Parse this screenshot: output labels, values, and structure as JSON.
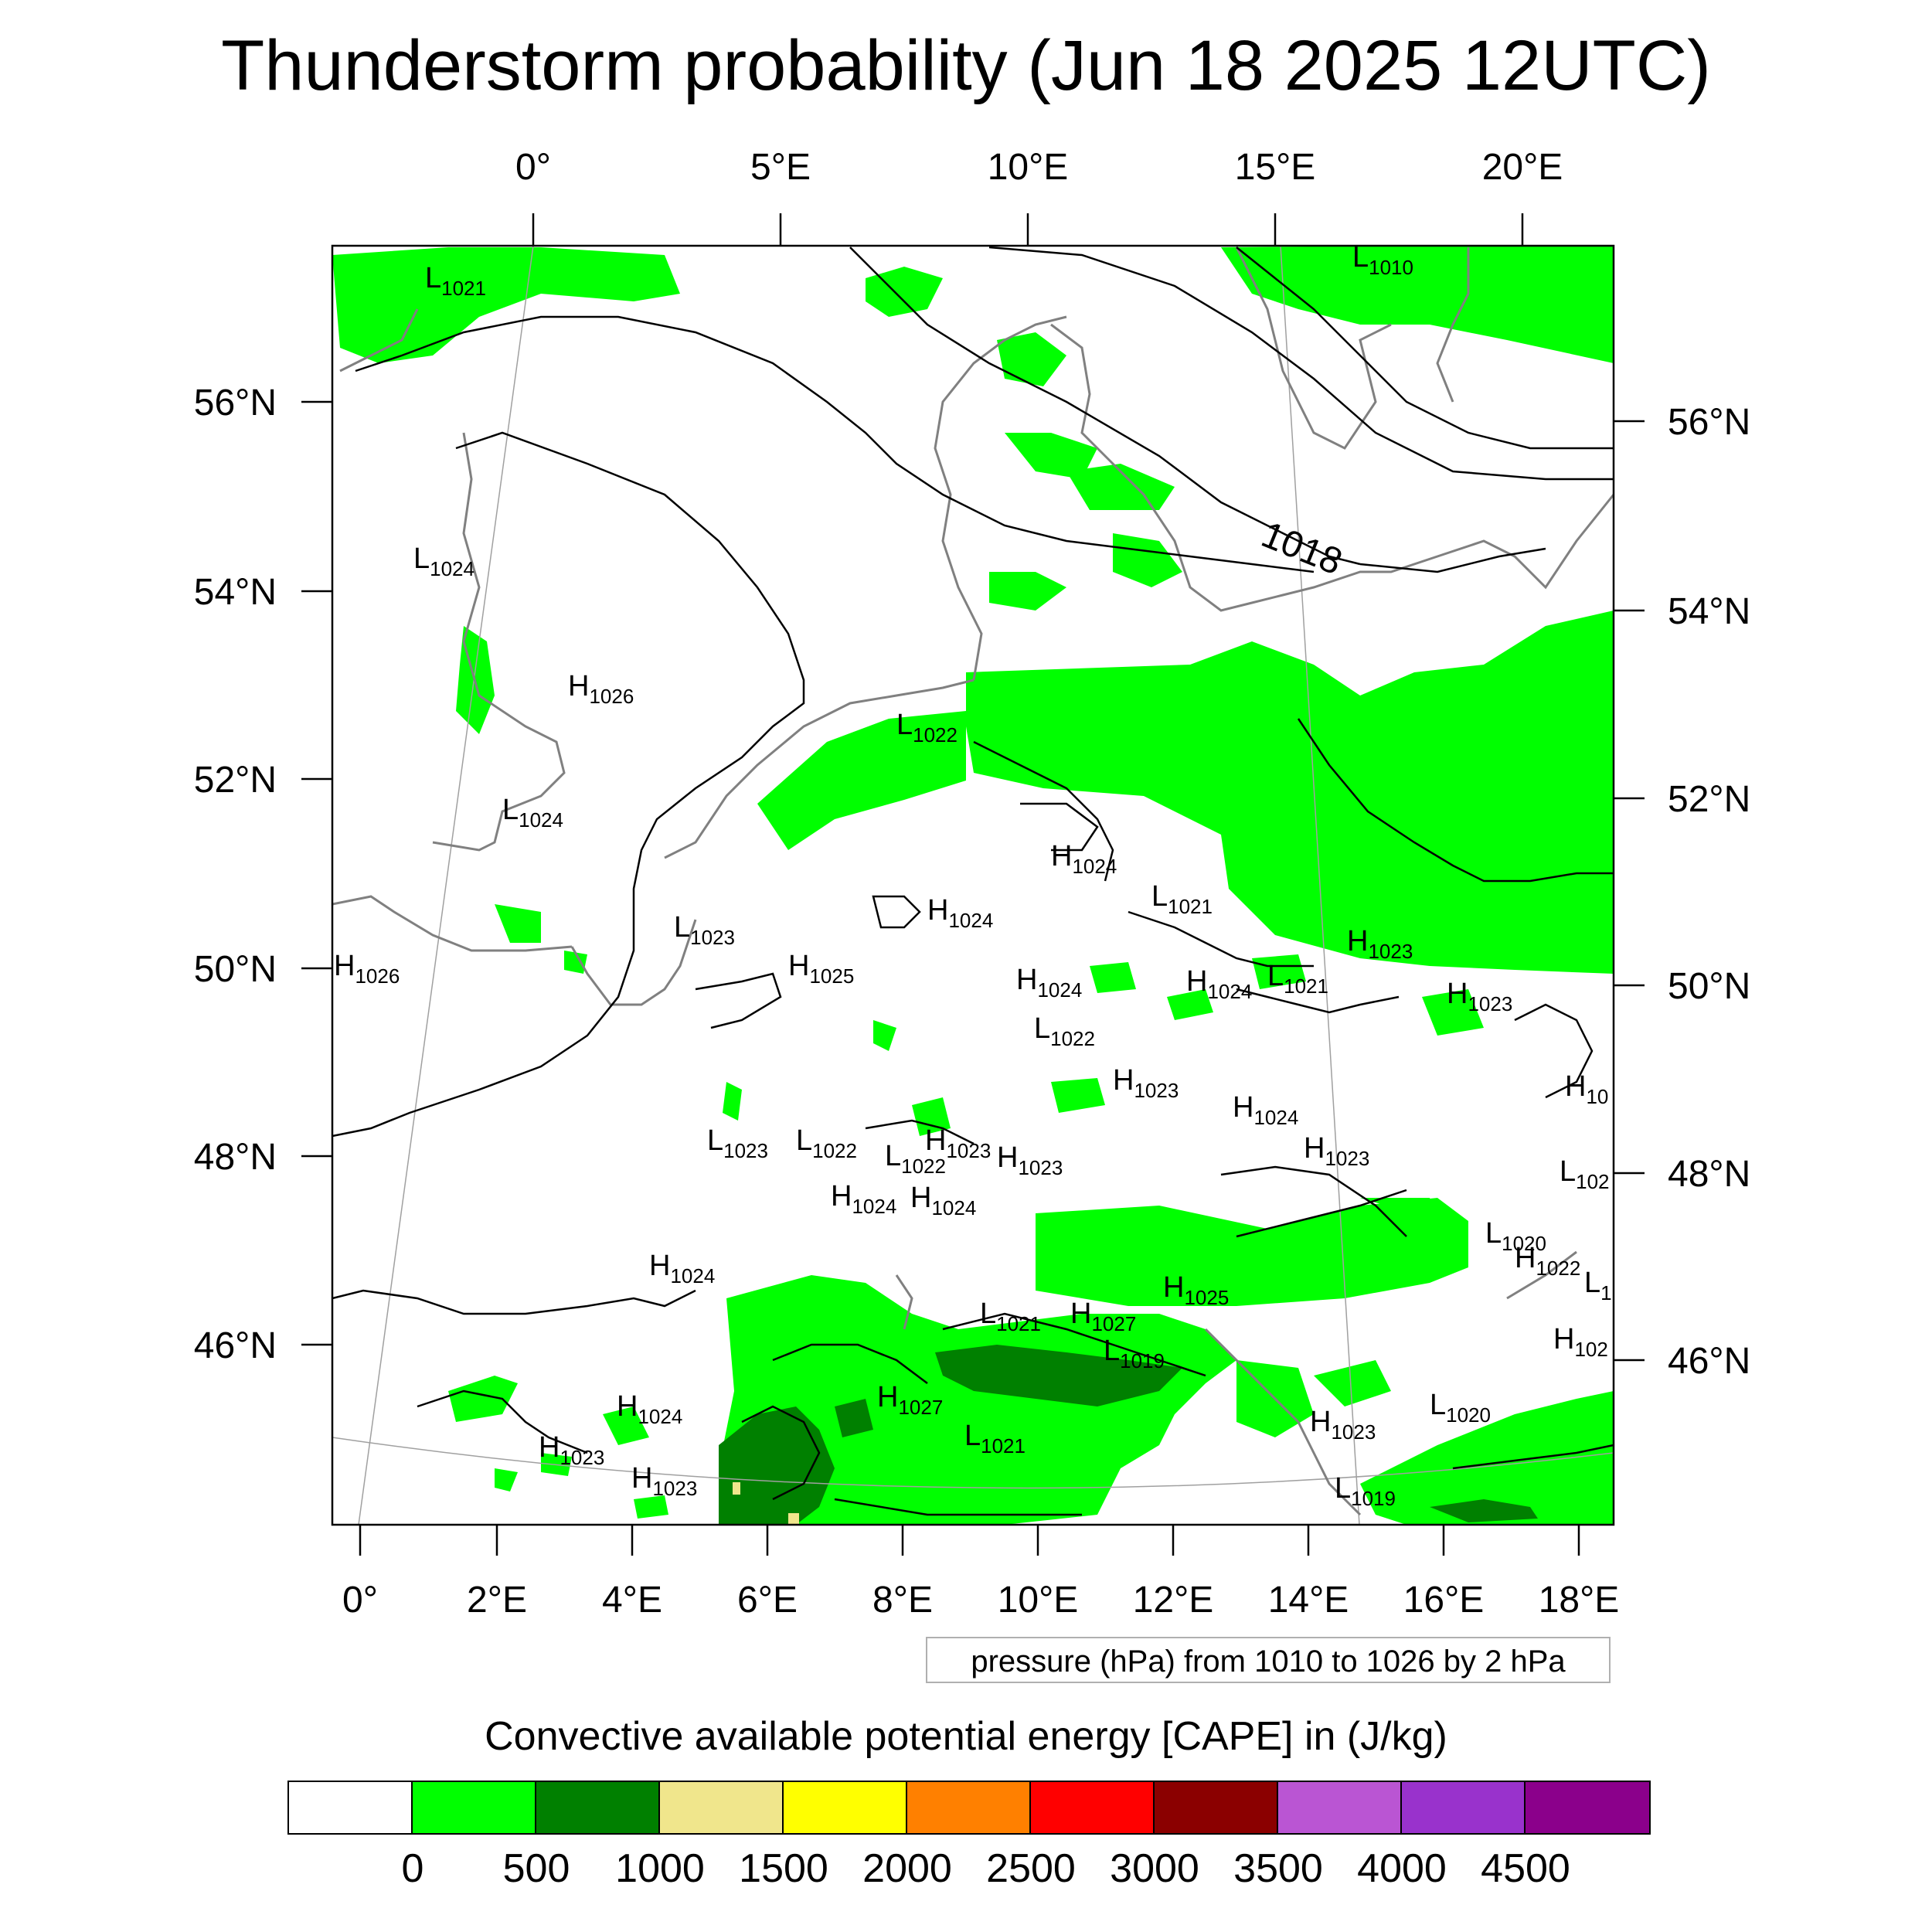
{
  "title": "Thunderstorm probability (Jun 18 2025 12UTC)",
  "top_axis_labels": [
    "0°",
    "5°E",
    "10°E",
    "15°E",
    "20°E"
  ],
  "bottom_axis_labels": [
    "0°",
    "2°E",
    "4°E",
    "6°E",
    "8°E",
    "10°E",
    "12°E",
    "14°E",
    "16°E",
    "18°E"
  ],
  "left_axis_labels": [
    "56°N",
    "54°N",
    "52°N",
    "50°N",
    "48°N",
    "46°N"
  ],
  "right_axis_labels": [
    "56°N",
    "54°N",
    "52°N",
    "50°N",
    "48°N",
    "46°N"
  ],
  "contour_label": "1018",
  "pressure_centers": [
    {
      "k": "L",
      "v": "1021"
    },
    {
      "k": "L",
      "v": "1010"
    },
    {
      "k": "L",
      "v": "1024"
    },
    {
      "k": "H",
      "v": "1026"
    },
    {
      "k": "L",
      "v": "1022"
    },
    {
      "k": "L",
      "v": "1024"
    },
    {
      "k": "H",
      "v": "1024"
    },
    {
      "k": "L",
      "v": "1021"
    },
    {
      "k": "H",
      "v": "1024"
    },
    {
      "k": "L",
      "v": "1023"
    },
    {
      "k": "H",
      "v": "1026"
    },
    {
      "k": "H",
      "v": "1025"
    },
    {
      "k": "H",
      "v": "1024"
    },
    {
      "k": "H",
      "v": "1024"
    },
    {
      "k": "L",
      "v": "1021"
    },
    {
      "k": "H",
      "v": "1023"
    },
    {
      "k": "H",
      "v": "1023"
    },
    {
      "k": "L",
      "v": "1022"
    },
    {
      "k": "H",
      "v": "1023"
    },
    {
      "k": "H",
      "v": "10"
    },
    {
      "k": "H",
      "v": "1024"
    },
    {
      "k": "L",
      "v": "1023"
    },
    {
      "k": "L",
      "v": "1022"
    },
    {
      "k": "L",
      "v": "1022"
    },
    {
      "k": "H",
      "v": "1023"
    },
    {
      "k": "H",
      "v": "1023"
    },
    {
      "k": "H",
      "v": "1023"
    },
    {
      "k": "L",
      "v": "102"
    },
    {
      "k": "H",
      "v": "1024"
    },
    {
      "k": "H",
      "v": "1024"
    },
    {
      "k": "L",
      "v": "1020"
    },
    {
      "k": "H",
      "v": "1022"
    },
    {
      "k": "H",
      "v": "1024"
    },
    {
      "k": "H",
      "v": "1025"
    },
    {
      "k": "L",
      "v": "1"
    },
    {
      "k": "L",
      "v": "1021"
    },
    {
      "k": "H",
      "v": "1027"
    },
    {
      "k": "L",
      "v": "1019"
    },
    {
      "k": "H",
      "v": "102"
    },
    {
      "k": "H",
      "v": "1024"
    },
    {
      "k": "H",
      "v": "1027"
    },
    {
      "k": "L",
      "v": "1021"
    },
    {
      "k": "H",
      "v": "1023"
    },
    {
      "k": "L",
      "v": "1020"
    },
    {
      "k": "H",
      "v": "1023"
    },
    {
      "k": "H",
      "v": "1023"
    },
    {
      "k": "L",
      "v": "1019"
    }
  ],
  "legend_note": "pressure (hPa) from 1010 to 1026 by 2 hPa",
  "colorbar": {
    "title": "Convective available potential energy [CAPE] in (J/kg)",
    "colors": [
      "#ffffff",
      "#00ff00",
      "#008000",
      "#f0e68c",
      "#ffff00",
      "#ff8000",
      "#ff0000",
      "#8b0000",
      "#ba55d3",
      "#9932cc",
      "#8b008b"
    ],
    "labels": [
      "0",
      "500",
      "1000",
      "1500",
      "2000",
      "2500",
      "3000",
      "3500",
      "4000",
      "4500"
    ]
  }
}
